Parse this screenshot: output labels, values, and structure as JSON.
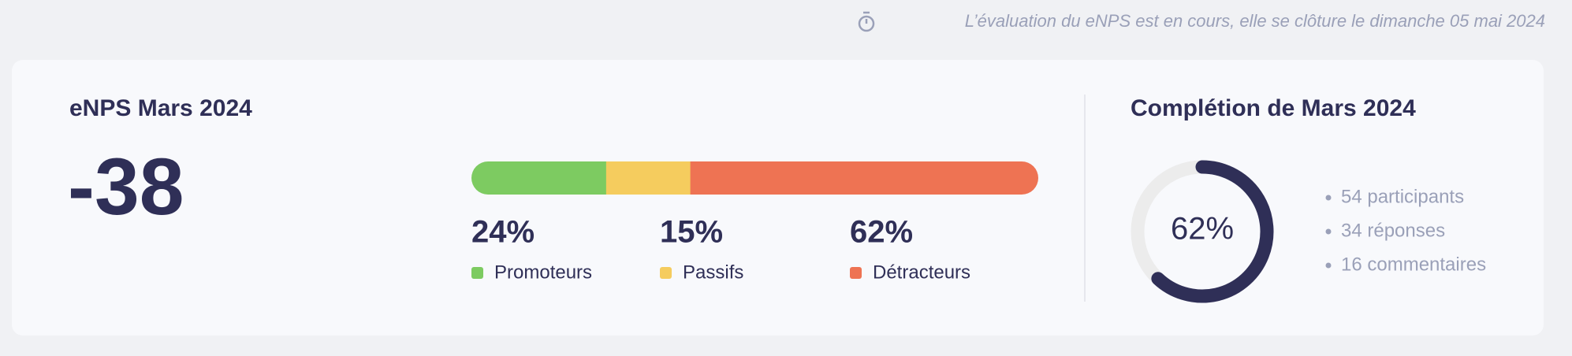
{
  "notice": "L’évaluation du eNPS est en cours, elle se clôture le dimanche 05 mai 2024",
  "enps": {
    "title": "eNPS Mars 2024",
    "score": -38,
    "segments": [
      {
        "value": 24,
        "label": "24%",
        "name": "Promoteurs",
        "color": "#7dcb61"
      },
      {
        "value": 15,
        "label": "15%",
        "name": "Passifs",
        "color": "#f5cc5e"
      },
      {
        "value": 62,
        "label": "62%",
        "name": "Détracteurs",
        "color": "#ee7353"
      }
    ]
  },
  "completion": {
    "title": "Complétion de Mars 2024",
    "value": 62,
    "label": "62%",
    "color": "#2f2f57",
    "stats": [
      "54 participants",
      "34 réponses",
      "16 commentaires"
    ]
  }
}
